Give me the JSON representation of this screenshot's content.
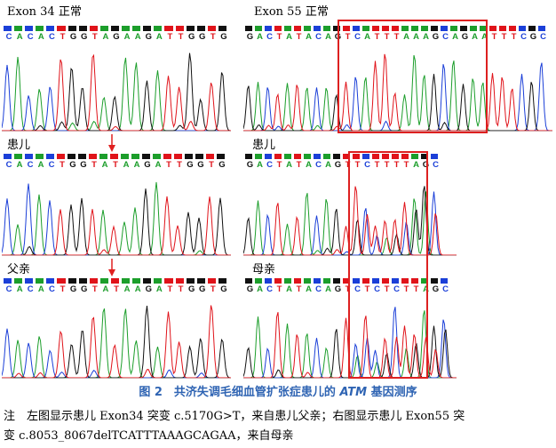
{
  "colors": {
    "A": "#1c9e2b",
    "C": "#1b3fd8",
    "G": "#111111",
    "T": "#e0131a",
    "box": "#dd2020",
    "arrow": "#e02020",
    "caption": "#2f64b3"
  },
  "panels": [
    {
      "id": "left-top",
      "label": "Exon 34 正常",
      "seq": "CACACTGGTAGAAGATTGGTG"
    },
    {
      "id": "left-mid",
      "label": "患儿",
      "seq": "CACACTGGTATAAGATTGGTG"
    },
    {
      "id": "left-bot",
      "label": "父亲",
      "seq": "CACACTGGTATAAGATTGGTG"
    },
    {
      "id": "right-top",
      "label": "Exon 55 正常",
      "seq": "GACTATACAGTCATTTAAAGCAGAATTTCGC"
    },
    {
      "id": "right-mid",
      "label": "患儿",
      "seq": "GACTATACAGTTCTTTTAGC"
    },
    {
      "id": "right-bot",
      "label": "母亲",
      "seq": "GACTATACAGTCTCTCTTAGC"
    }
  ],
  "caption": {
    "prefix": "图 2　共济失调毛细血管扩张症患儿的 ",
    "gene": "ATM",
    "suffix": " 基因测序"
  },
  "note": {
    "line1": "注　左图显示患儿 Exon34 突变 c.5170G>T，来自患儿父亲；右图显示患儿 Exon55 突",
    "line2": "变 c.8053_8067delTCATTTAAAGCAGAA，来自母亲"
  }
}
